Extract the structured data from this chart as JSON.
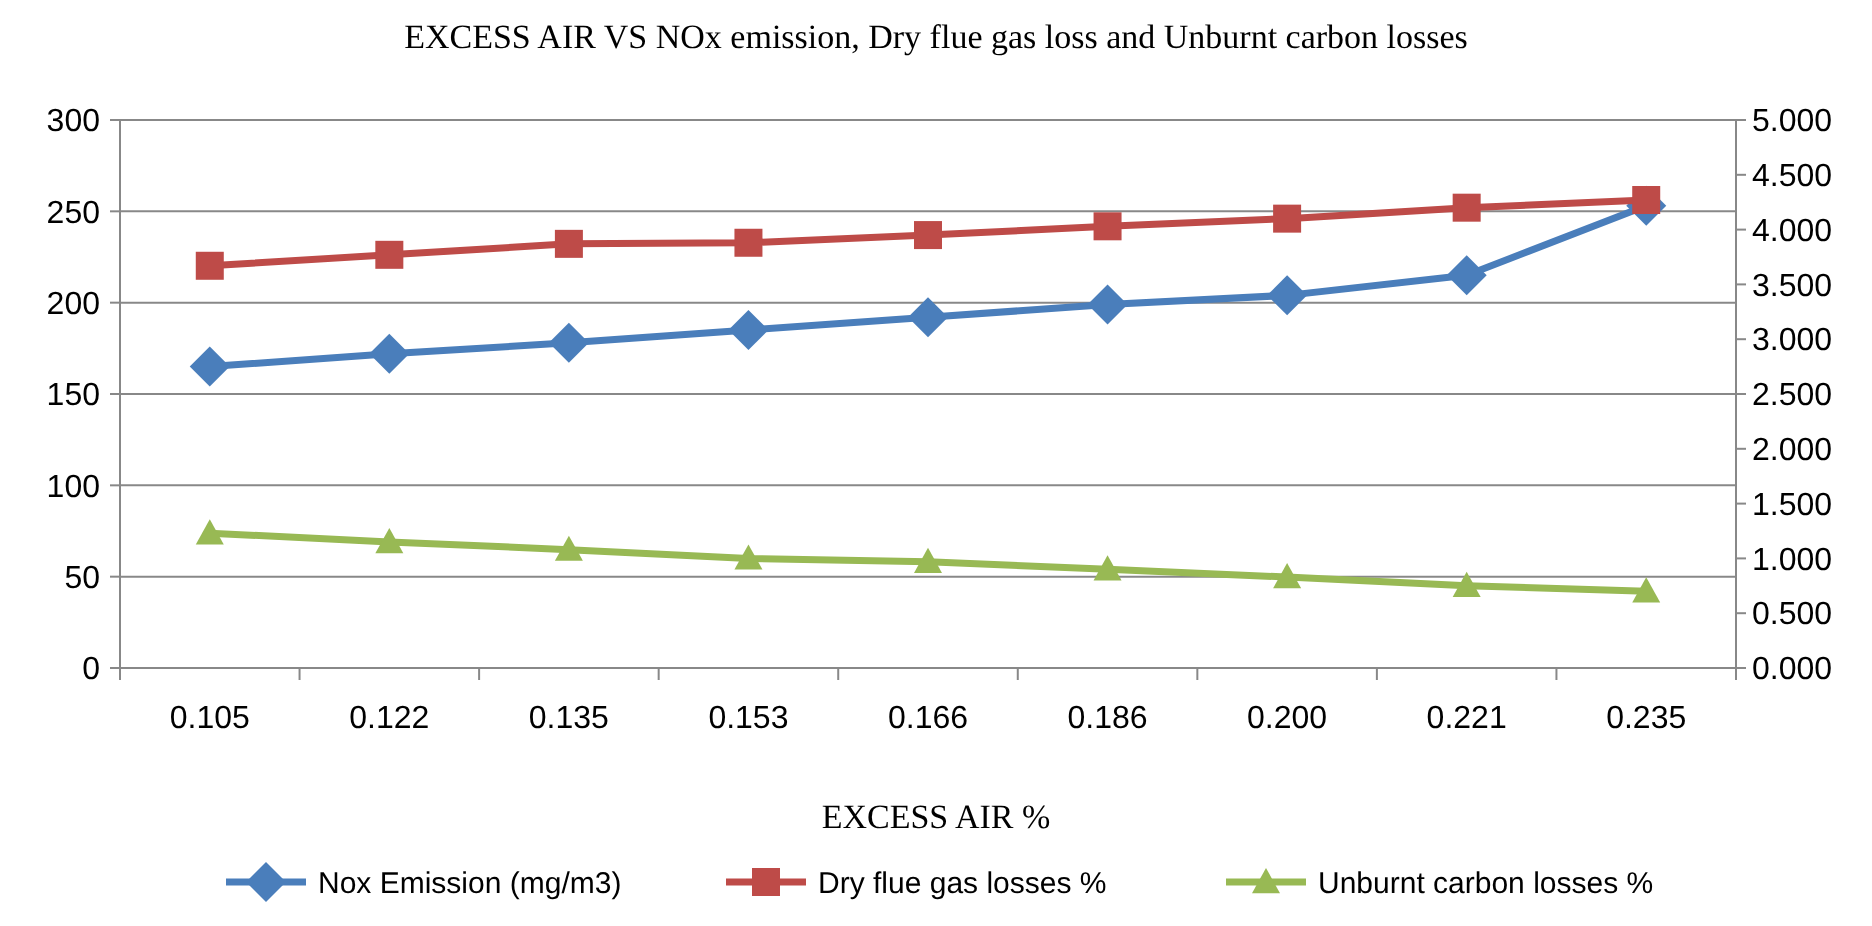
{
  "chart_data": {
    "type": "line",
    "title": "EXCESS AIR VS NOx emission, Dry flue gas loss and Unburnt carbon losses",
    "xlabel": "EXCESS AIR %",
    "categories": [
      "0.105",
      "0.122",
      "0.135",
      "0.153",
      "0.166",
      "0.186",
      "0.200",
      "0.221",
      "0.235"
    ],
    "series": [
      {
        "name": "Nox Emission (mg/m3)",
        "color": "#4a7ebb",
        "marker": "diamond",
        "values": [
          165,
          172,
          178,
          185,
          192,
          199,
          204,
          215,
          253
        ]
      },
      {
        "name": "Dry flue gas losses %",
        "color": "#be4b48",
        "marker": "square",
        "axis": "y2",
        "values": [
          3.67,
          3.77,
          3.87,
          3.88,
          3.95,
          4.03,
          4.1,
          4.2,
          4.27
        ]
      },
      {
        "name": "Unburnt carbon losses %",
        "color": "#98b954",
        "marker": "triangle",
        "axis": "y2",
        "values": [
          1.23,
          1.15,
          1.08,
          1.0,
          0.97,
          0.9,
          0.83,
          0.75,
          0.7
        ]
      }
    ],
    "ylim": [
      0,
      300
    ],
    "yticks": [
      0,
      50,
      100,
      150,
      200,
      250,
      300
    ],
    "y2lim": [
      0,
      5
    ],
    "y2ticks": [
      {
        "value": 0,
        "label": "0.000"
      },
      {
        "value": 0.5,
        "label": "0.500"
      },
      {
        "value": 1,
        "label": "1.000"
      },
      {
        "value": 1.5,
        "label": "1.500"
      },
      {
        "value": 2,
        "label": "2.000"
      },
      {
        "value": 2.5,
        "label": "2.500"
      },
      {
        "value": 3,
        "label": "3.000"
      },
      {
        "value": 3.5,
        "label": "3.500"
      },
      {
        "value": 4,
        "label": "4.000"
      },
      {
        "value": 4.5,
        "label": "4.500"
      },
      {
        "value": 5,
        "label": "5.000"
      }
    ],
    "grid": "y",
    "legend": "bottom",
    "line_style": "solid"
  }
}
